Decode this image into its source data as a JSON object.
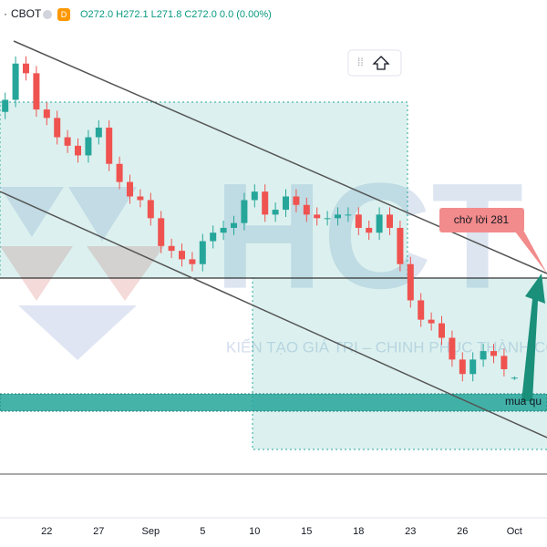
{
  "chart_data": {
    "type": "candlestick",
    "symbol": "CBOT",
    "interval": "D",
    "ohlc_text": "O272.0 H272.1 L271.8 C272.0 0.0 (0.00%)",
    "annotations": [
      "chờ lời 281",
      "mua qu"
    ],
    "watermark": [
      "HCT",
      "KIẾN TẠO GIÁ TRỊ – CHINH PHỤC THÀNH CÔNG"
    ],
    "up_color": "#26a69a",
    "down_color": "#ef5350",
    "ylim": [
      261,
      301
    ],
    "categories": [
      null,
      null,
      null,
      null,
      "22",
      null,
      null,
      null,
      null,
      "27",
      null,
      null,
      null,
      null,
      "Sep",
      null,
      null,
      null,
      null,
      "5",
      null,
      null,
      null,
      null,
      "10",
      null,
      null,
      null,
      null,
      "15",
      null,
      null,
      null,
      null,
      "18",
      null,
      null,
      null,
      null,
      "23",
      null,
      null,
      null,
      null,
      "26",
      null,
      null,
      null,
      null,
      "Oct"
    ],
    "open": [
      294.0,
      295.0,
      298.0,
      297.2,
      294.2,
      293.5,
      291.9,
      291.2,
      290.4,
      291.9,
      292.7,
      289.7,
      288.2,
      287.0,
      286.7,
      285.2,
      282.9,
      282.5,
      281.8,
      281.4,
      283.3,
      284.0,
      284.4,
      284.8,
      286.7,
      287.4,
      285.5,
      285.9,
      287.0,
      286.3,
      285.5,
      285.2,
      285.2,
      285.5,
      285.5,
      284.4,
      284.0,
      285.5,
      284.4,
      281.4,
      278.4,
      276.8,
      276.5,
      275.3,
      273.5,
      272.3,
      273.5,
      274.2,
      273.8,
      272.0
    ],
    "high": [
      295.6,
      298.6,
      298.6,
      297.8,
      294.8,
      294.1,
      292.5,
      291.8,
      292.5,
      293.3,
      293.3,
      290.3,
      288.8,
      287.6,
      287.3,
      285.8,
      283.5,
      283.1,
      282.4,
      283.9,
      284.6,
      285.0,
      285.4,
      287.3,
      288.0,
      288.0,
      286.5,
      287.6,
      287.6,
      286.9,
      286.1,
      285.8,
      286.1,
      286.1,
      286.1,
      285.0,
      286.1,
      286.1,
      285.0,
      282.0,
      279.0,
      277.4,
      277.1,
      275.9,
      274.1,
      274.1,
      274.8,
      274.8,
      274.4,
      272.1
    ],
    "low": [
      293.4,
      294.4,
      296.6,
      293.6,
      292.9,
      291.3,
      290.6,
      289.8,
      289.8,
      291.3,
      289.1,
      287.6,
      286.4,
      286.1,
      284.6,
      282.3,
      281.9,
      281.2,
      280.8,
      280.8,
      282.7,
      283.4,
      283.8,
      284.2,
      286.1,
      284.9,
      284.9,
      285.3,
      285.7,
      284.9,
      284.6,
      284.6,
      284.6,
      284.9,
      283.8,
      283.4,
      283.4,
      283.8,
      280.8,
      277.8,
      276.2,
      275.9,
      274.7,
      272.9,
      271.7,
      271.7,
      272.9,
      273.2,
      272.1,
      271.8
    ],
    "close": [
      295.0,
      298.0,
      297.2,
      294.2,
      293.5,
      291.9,
      291.2,
      290.4,
      291.9,
      292.7,
      289.7,
      288.2,
      287.0,
      286.7,
      285.2,
      282.9,
      282.5,
      281.8,
      281.4,
      283.3,
      284.0,
      284.4,
      284.8,
      286.7,
      287.4,
      285.5,
      285.9,
      287.0,
      286.3,
      285.5,
      285.2,
      285.2,
      285.5,
      285.5,
      284.4,
      284.0,
      285.5,
      284.4,
      281.4,
      278.4,
      276.8,
      276.5,
      275.3,
      273.5,
      272.3,
      273.5,
      274.2,
      273.8,
      272.7,
      272.0
    ]
  }
}
